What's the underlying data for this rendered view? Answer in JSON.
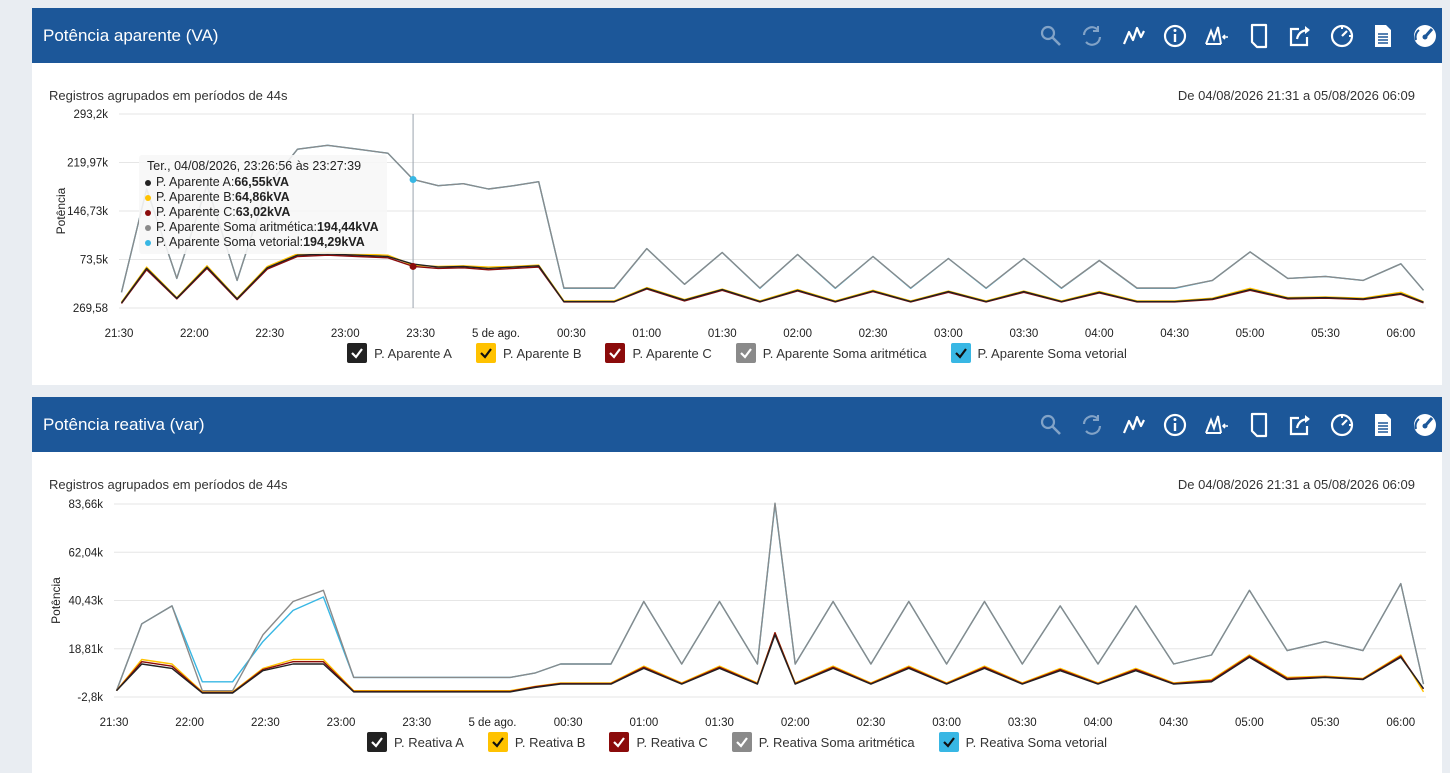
{
  "icons": {
    "toolbar": [
      "zoom-icon",
      "refresh-icon",
      "line-chart-icon",
      "info-icon",
      "peak-icon",
      "page-icon",
      "export-icon",
      "clock-icon",
      "document-icon",
      "speedometer-icon"
    ]
  },
  "colors": {
    "header": "#1c5799",
    "A": "#222222",
    "B": "#ffc200",
    "C": "#8b0b0b",
    "Soma": "#8a8a8a",
    "Vet": "#38b7e4",
    "grid": "#e6e6e6"
  },
  "charts": [
    {
      "title": "Potência aparente (VA)",
      "subtitle": "Registros agrupados em períodos de 44s",
      "range": "De 04/08/2026 21:31 a 05/08/2026 06:09",
      "tooltip": {
        "header": "Ter., 04/08/2026, 23:26:56 às 23:27:39",
        "rows": [
          {
            "label": "P. Aparente A: ",
            "value": "66,55kVA"
          },
          {
            "label": "P. Aparente B: ",
            "value": "64,86kVA"
          },
          {
            "label": "P. Aparente C: ",
            "value": "63,02kVA"
          },
          {
            "label": "P. Aparente Soma aritmética: ",
            "value": "194,44kVA"
          },
          {
            "label": "P. Aparente Soma vetorial: ",
            "value": "194,29kVA"
          }
        ]
      },
      "legend": [
        "P. Aparente A",
        "P. Aparente B",
        "P. Aparente C",
        "P. Aparente Soma aritmética",
        "P. Aparente Soma vetorial"
      ]
    },
    {
      "title": "Potência reativa (var)",
      "subtitle": "Registros agrupados em períodos de 44s",
      "range": "De 04/08/2026 21:31 a 05/08/2026 06:09",
      "legend": [
        "P. Reativa A",
        "P. Reativa B",
        "P. Reativa C",
        "P. Reativa Soma aritmética",
        "P. Reativa Soma vetorial"
      ]
    }
  ],
  "chart_data": [
    {
      "type": "line",
      "title": "Potência aparente (VA)",
      "ylabel": "Potência",
      "xlabel": "",
      "x_ticks": [
        "21:30",
        "22:00",
        "22:30",
        "23:00",
        "23:30",
        "5 de ago.",
        "00:30",
        "01:00",
        "01:30",
        "02:00",
        "02:30",
        "03:00",
        "03:30",
        "04:00",
        "04:30",
        "05:00",
        "05:30",
        "06:00"
      ],
      "y_ticks": [
        "293,2k",
        "219,97k",
        "146,73k",
        "73,5k",
        "269,58"
      ],
      "ylim": [
        269.58,
        293200
      ],
      "x": [
        "21:31",
        "21:41",
        "21:53",
        "22:05",
        "22:17",
        "22:29",
        "22:41",
        "22:53",
        "23:05",
        "23:17",
        "23:27",
        "23:37",
        "23:47",
        "23:57",
        "00:07",
        "00:17",
        "00:27",
        "00:37",
        "00:47",
        "01:00",
        "01:15",
        "01:30",
        "01:45",
        "02:00",
        "02:15",
        "02:30",
        "02:45",
        "03:00",
        "03:15",
        "03:30",
        "03:45",
        "04:00",
        "04:15",
        "04:30",
        "04:45",
        "05:00",
        "05:15",
        "05:30",
        "05:45",
        "06:00",
        "06:09"
      ],
      "series": [
        {
          "name": "P. Aparente A",
          "values": [
            8000,
            60000,
            15000,
            62000,
            14000,
            61000,
            80000,
            82000,
            80000,
            78000,
            66550,
            62000,
            63000,
            60000,
            62000,
            64000,
            10000,
            10000,
            10000,
            30000,
            12000,
            28000,
            10000,
            27000,
            10000,
            26000,
            10000,
            25000,
            10000,
            25000,
            10000,
            24000,
            10000,
            10000,
            14000,
            28000,
            15000,
            16000,
            14000,
            22000,
            9000
          ]
        },
        {
          "name": "P. Aparente B",
          "values": [
            9000,
            62000,
            16000,
            64000,
            15000,
            63000,
            82000,
            84000,
            82000,
            80000,
            64860,
            63000,
            64000,
            62000,
            63000,
            65000,
            11000,
            11000,
            11000,
            31000,
            13000,
            29000,
            11000,
            28000,
            11000,
            27000,
            11000,
            26000,
            11000,
            26000,
            11000,
            25000,
            11000,
            11000,
            15000,
            30000,
            16000,
            17000,
            15000,
            24000,
            10000
          ]
        },
        {
          "name": "P. Aparente C",
          "values": [
            7000,
            58000,
            14000,
            60000,
            13000,
            59000,
            78000,
            80000,
            78000,
            76000,
            63020,
            60000,
            61000,
            58000,
            60000,
            62000,
            9500,
            9500,
            9500,
            29000,
            11000,
            27000,
            9500,
            26000,
            9500,
            25000,
            9500,
            24000,
            9500,
            24000,
            9500,
            23000,
            9500,
            9500,
            13000,
            27000,
            14000,
            15000,
            13000,
            21000,
            8000
          ]
        },
        {
          "name": "P. Aparente Soma aritmética",
          "values": [
            24000,
            180000,
            45000,
            186000,
            42000,
            183000,
            240000,
            246000,
            240000,
            234000,
            194440,
            185000,
            188000,
            180000,
            185000,
            191000,
            30500,
            30500,
            30500,
            90000,
            36000,
            84000,
            30500,
            81000,
            30500,
            78000,
            30500,
            75000,
            30500,
            75000,
            30500,
            72000,
            30500,
            30500,
            42000,
            85000,
            45000,
            48000,
            42000,
            67000,
            27000
          ]
        },
        {
          "name": "P. Aparente Soma vetorial",
          "values": [
            24000,
            180000,
            45000,
            186000,
            42000,
            183000,
            240000,
            246000,
            240000,
            234000,
            194290,
            185000,
            188000,
            180000,
            185000,
            191000,
            30000,
            30000,
            30000,
            90000,
            36000,
            84000,
            30000,
            81000,
            30000,
            78000,
            30000,
            75000,
            30000,
            75000,
            30000,
            72000,
            30000,
            30000,
            42000,
            85000,
            45000,
            48000,
            42000,
            67000,
            27000
          ]
        }
      ]
    },
    {
      "type": "line",
      "title": "Potência reativa (var)",
      "ylabel": "Potência",
      "xlabel": "",
      "x_ticks": [
        "21:30",
        "22:00",
        "22:30",
        "23:00",
        "23:30",
        "5 de ago.",
        "00:30",
        "01:00",
        "01:30",
        "02:00",
        "02:30",
        "03:00",
        "03:30",
        "04:00",
        "04:30",
        "05:00",
        "05:30",
        "06:00"
      ],
      "y_ticks": [
        "83,66k",
        "62,04k",
        "40,43k",
        "18,81k",
        "-2,8k"
      ],
      "ylim": [
        -2800,
        83660
      ],
      "x": [
        "21:31",
        "21:41",
        "21:53",
        "22:05",
        "22:17",
        "22:29",
        "22:41",
        "22:53",
        "23:05",
        "23:17",
        "23:27",
        "23:37",
        "23:47",
        "23:57",
        "00:07",
        "00:17",
        "00:27",
        "00:37",
        "00:47",
        "01:00",
        "01:15",
        "01:30",
        "01:45",
        "01:52",
        "02:00",
        "02:15",
        "02:30",
        "02:45",
        "03:00",
        "03:15",
        "03:30",
        "03:45",
        "04:00",
        "04:15",
        "04:30",
        "04:45",
        "05:00",
        "05:15",
        "05:30",
        "05:45",
        "06:00",
        "06:09"
      ],
      "series": [
        {
          "name": "P. Reativa A",
          "values": [
            0,
            12000,
            10000,
            -1000,
            -1000,
            9000,
            12000,
            12000,
            -500,
            -500,
            -500,
            -500,
            -500,
            -500,
            -500,
            1500,
            3000,
            3000,
            3000,
            10000,
            3000,
            10000,
            3000,
            25000,
            3000,
            10000,
            3000,
            10000,
            3000,
            10000,
            3000,
            9000,
            3000,
            9000,
            3000,
            4000,
            15000,
            5000,
            6000,
            5000,
            15000,
            1000
          ]
        },
        {
          "name": "P. Reativa B",
          "values": [
            0,
            14000,
            12000,
            -500,
            -500,
            10000,
            14000,
            14000,
            0,
            0,
            0,
            0,
            0,
            0,
            0,
            2000,
            3500,
            3500,
            3500,
            11000,
            3500,
            11000,
            3500,
            26000,
            3500,
            11000,
            3500,
            11000,
            3500,
            11000,
            3500,
            10000,
            3500,
            10000,
            3500,
            5000,
            16000,
            6000,
            6500,
            5500,
            16000,
            -500
          ]
        },
        {
          "name": "P. Reativa C",
          "values": [
            0,
            13000,
            11000,
            -800,
            -800,
            9500,
            13000,
            13000,
            -300,
            -300,
            -300,
            -300,
            -300,
            -300,
            -300,
            1800,
            3200,
            3200,
            3200,
            10500,
            3200,
            10500,
            3200,
            26000,
            3200,
            10500,
            3200,
            10500,
            3200,
            10500,
            3200,
            9500,
            3200,
            9500,
            3200,
            4500,
            15500,
            5500,
            6200,
            5200,
            15500,
            800
          ]
        },
        {
          "name": "P. Reativa Soma aritmética",
          "values": [
            0,
            30000,
            38000,
            0,
            0,
            25000,
            40000,
            45000,
            6000,
            6000,
            6000,
            6000,
            6000,
            6000,
            6000,
            8000,
            12000,
            12000,
            12000,
            40000,
            12000,
            40000,
            12000,
            84000,
            12000,
            40000,
            12000,
            40000,
            12000,
            40000,
            12000,
            38000,
            12000,
            38000,
            12000,
            16000,
            45000,
            18000,
            22000,
            18000,
            48000,
            3000
          ]
        },
        {
          "name": "P. Reativa Soma vetorial",
          "values": [
            0,
            30000,
            38000,
            4000,
            4000,
            22000,
            36000,
            42000,
            6000,
            6000,
            6000,
            6000,
            6000,
            6000,
            6000,
            8000,
            12000,
            12000,
            12000,
            40000,
            12000,
            40000,
            12000,
            83660,
            12000,
            40000,
            12000,
            40000,
            12000,
            40000,
            12000,
            38000,
            12000,
            38000,
            12000,
            16000,
            45000,
            18000,
            22000,
            18000,
            48000,
            3000
          ]
        }
      ]
    }
  ]
}
